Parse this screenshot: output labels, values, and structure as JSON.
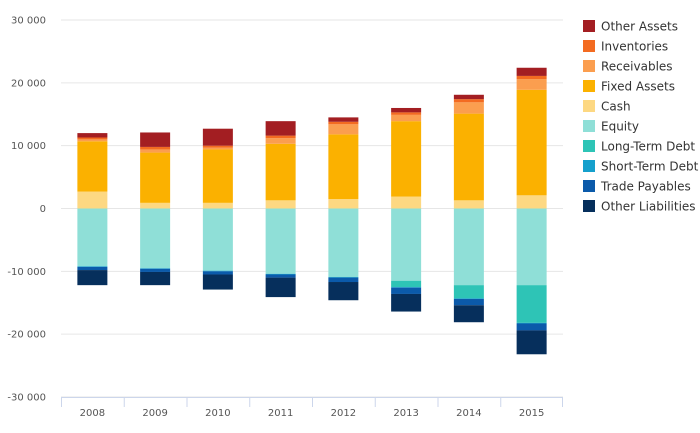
{
  "chart_data": {
    "type": "bar",
    "stacked": true,
    "categories": [
      "2008",
      "2009",
      "2010",
      "2011",
      "2012",
      "2013",
      "2014",
      "2015"
    ],
    "ylim": [
      -30000,
      30000
    ],
    "yticks": [
      {
        "value": 30000,
        "label": "30 000"
      },
      {
        "value": 20000,
        "label": "20 000"
      },
      {
        "value": 10000,
        "label": "10 000"
      },
      {
        "value": 0,
        "label": "0"
      },
      {
        "value": -10000,
        "label": "-10 000"
      },
      {
        "value": -20000,
        "label": "-20 000"
      },
      {
        "value": -30000,
        "label": "-30 000"
      }
    ],
    "grid": true,
    "legend_position": "right",
    "series": [
      {
        "name": "Other Assets",
        "color": "#a31e22",
        "values": [
          700,
          2300,
          2700,
          2300,
          700,
          700,
          700,
          1300
        ]
      },
      {
        "name": "Inventories",
        "color": "#f36b21",
        "values": [
          300,
          400,
          300,
          400,
          400,
          400,
          500,
          500
        ]
      },
      {
        "name": "Receivables",
        "color": "#fb9e4f",
        "values": [
          300,
          500,
          300,
          900,
          1600,
          1000,
          1800,
          1700
        ]
      },
      {
        "name": "Fixed Assets",
        "color": "#fbb100",
        "values": [
          8000,
          8000,
          8500,
          9000,
          10300,
          12000,
          13800,
          16800
        ]
      },
      {
        "name": "Cash",
        "color": "#fdd882",
        "values": [
          2700,
          900,
          900,
          1300,
          1500,
          1900,
          1300,
          2100
        ]
      },
      {
        "name": "Equity",
        "color": "#8fdfd7",
        "values": [
          -9200,
          -9500,
          -9900,
          -10400,
          -10900,
          -11500,
          -12200,
          -12200
        ]
      },
      {
        "name": "Long-Term Debt",
        "color": "#2ec4b6",
        "values": [
          0,
          0,
          0,
          0,
          0,
          -1000,
          -2100,
          -6000
        ]
      },
      {
        "name": "Short-Term Debt",
        "color": "#15a0cc",
        "values": [
          -100,
          -100,
          -100,
          -100,
          -100,
          -100,
          -100,
          -100
        ]
      },
      {
        "name": "Trade Payables",
        "color": "#0b5aaa",
        "values": [
          -500,
          -500,
          -500,
          -500,
          -700,
          -1000,
          -1000,
          -1100
        ]
      },
      {
        "name": "Other Liabilities",
        "color": "#062f5c",
        "values": [
          -2400,
          -2100,
          -2400,
          -3100,
          -2900,
          -2800,
          -2700,
          -3800
        ]
      }
    ]
  }
}
